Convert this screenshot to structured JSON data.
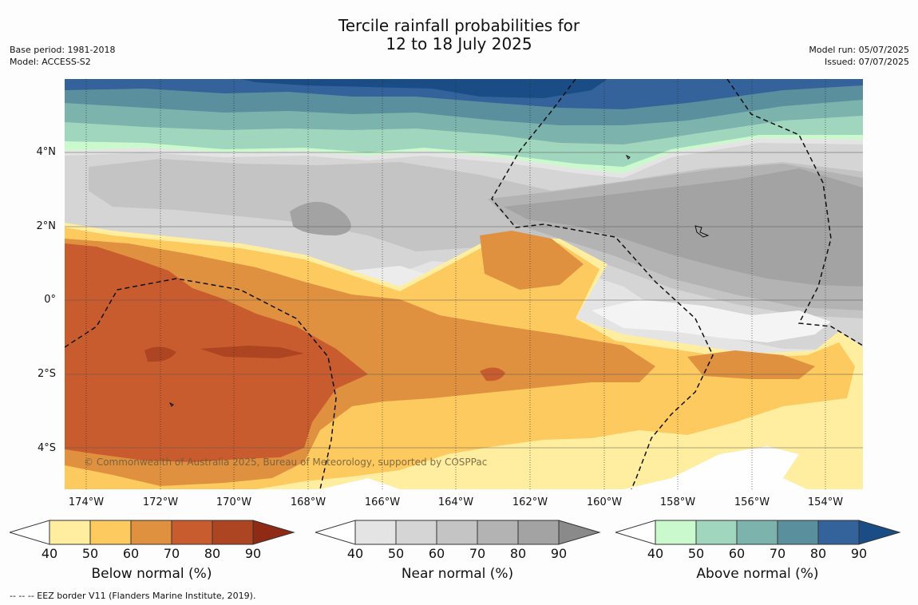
{
  "header": {
    "title_line1": "Tercile rainfall probabilities for",
    "title_line2": "12 to 18 July 2025",
    "left_line1": "Base period: 1981-2018",
    "left_line2": "Model: ACCESS-S2",
    "right_line1": "Model run: 05/07/2025",
    "right_line2": "Issued: 07/07/2025"
  },
  "map": {
    "lat_labels": [
      "4°N",
      "2°N",
      "0°",
      "2°S",
      "4°S"
    ],
    "lon_labels": [
      "174°W",
      "172°W",
      "170°W",
      "168°W",
      "166°W",
      "164°W",
      "162°W",
      "160°W",
      "158°W",
      "156°W",
      "154°W"
    ],
    "copyright": "© Commonwealth of Australia 2025, Bureau of Meteorology, supported by COSPPac",
    "colors": {
      "below": [
        "#ffeea0",
        "#fdca60",
        "#e09140",
        "#c95c2f",
        "#ad4523",
        "#8f2a15"
      ],
      "near": [
        "#e4e4e4",
        "#d5d5d5",
        "#c4c4c4",
        "#b3b3b3",
        "#a3a3a3",
        "#8a8a8a"
      ],
      "above": [
        "#c9f9cc",
        "#a0d6bd",
        "#7db3ad",
        "#5a8f9e",
        "#33639a",
        "#1a4d86"
      ]
    }
  },
  "colorbars": [
    {
      "label": "Below normal (%)",
      "ticks": [
        "40",
        "50",
        "60",
        "70",
        "80",
        "90"
      ]
    },
    {
      "label": "Near normal (%)",
      "ticks": [
        "40",
        "50",
        "60",
        "70",
        "80",
        "90"
      ]
    },
    {
      "label": "Above normal (%)",
      "ticks": [
        "40",
        "50",
        "60",
        "70",
        "80",
        "90"
      ]
    }
  ],
  "footer": {
    "legend_text": "--  --  -- EEZ border V11 (Flanders Marine Institute, 2019)."
  }
}
